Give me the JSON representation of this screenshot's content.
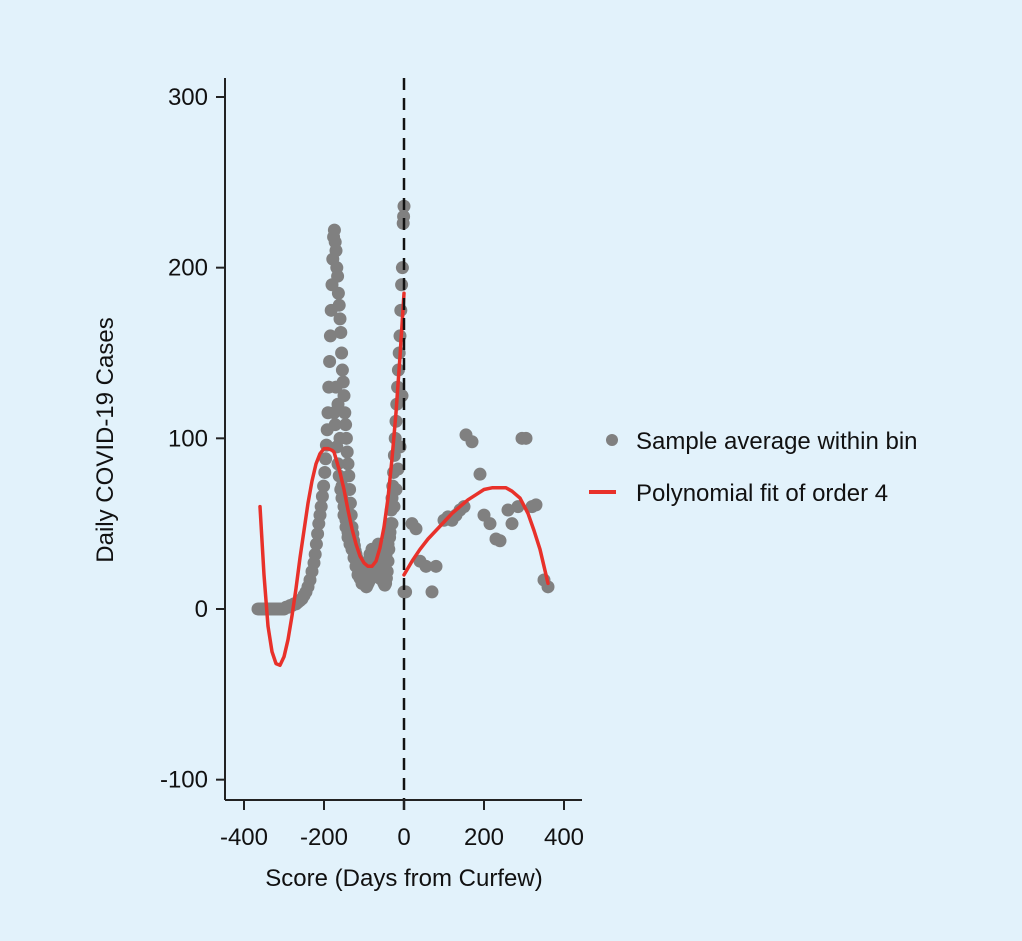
{
  "chart_data": {
    "type": "scatter",
    "title": "",
    "xlabel": "Score (Days from Curfew)",
    "ylabel": "Daily COVID-19 Cases",
    "xlim": [
      -450,
      450
    ],
    "ylim": [
      -110,
      310
    ],
    "xticks": [
      -400,
      -200,
      0,
      200,
      400
    ],
    "yticks": [
      -100,
      0,
      100,
      200,
      300
    ],
    "xtick_labels": [
      "-400",
      "-200",
      "0",
      "200",
      "400"
    ],
    "ytick_labels": [
      "-100",
      "0",
      "100",
      "200",
      "300"
    ],
    "cutoff": 0,
    "grid": false,
    "legend_position": "right",
    "colors": {
      "background": "#e2f2fb",
      "points": "#808080",
      "fit": "#e8312a",
      "axis": "#111111"
    },
    "series": [
      {
        "name": "Sample average within bin",
        "kind": "scatter",
        "points": [
          [
            -365,
            0
          ],
          [
            -360,
            0
          ],
          [
            -355,
            0
          ],
          [
            -350,
            0
          ],
          [
            -345,
            0
          ],
          [
            -340,
            0
          ],
          [
            -335,
            0
          ],
          [
            -330,
            0
          ],
          [
            -325,
            0
          ],
          [
            -320,
            0
          ],
          [
            -315,
            0
          ],
          [
            -310,
            0
          ],
          [
            -305,
            0
          ],
          [
            -300,
            0
          ],
          [
            -295,
            1
          ],
          [
            -290,
            1
          ],
          [
            -285,
            2
          ],
          [
            -280,
            2
          ],
          [
            -275,
            3
          ],
          [
            -270,
            3
          ],
          [
            -265,
            4
          ],
          [
            -260,
            5
          ],
          [
            -255,
            6
          ],
          [
            -250,
            8
          ],
          [
            -245,
            10
          ],
          [
            -240,
            13
          ],
          [
            -235,
            17
          ],
          [
            -230,
            22
          ],
          [
            -225,
            27
          ],
          [
            -222,
            32
          ],
          [
            -219,
            38
          ],
          [
            -216,
            44
          ],
          [
            -213,
            50
          ],
          [
            -210,
            55
          ],
          [
            -207,
            60
          ],
          [
            -204,
            66
          ],
          [
            -201,
            72
          ],
          [
            -198,
            80
          ],
          [
            -196,
            88
          ],
          [
            -194,
            96
          ],
          [
            -192,
            105
          ],
          [
            -190,
            115
          ],
          [
            -188,
            130
          ],
          [
            -186,
            145
          ],
          [
            -184,
            160
          ],
          [
            -182,
            175
          ],
          [
            -180,
            190
          ],
          [
            -178,
            205
          ],
          [
            -176,
            218
          ],
          [
            -174,
            222
          ],
          [
            -172,
            215
          ],
          [
            -170,
            210
          ],
          [
            -168,
            200
          ],
          [
            -166,
            195
          ],
          [
            -164,
            185
          ],
          [
            -162,
            178
          ],
          [
            -160,
            170
          ],
          [
            -158,
            162
          ],
          [
            -156,
            150
          ],
          [
            -154,
            140
          ],
          [
            -152,
            133
          ],
          [
            -150,
            125
          ],
          [
            -148,
            115
          ],
          [
            -146,
            108
          ],
          [
            -144,
            100
          ],
          [
            -142,
            92
          ],
          [
            -140,
            85
          ],
          [
            -138,
            78
          ],
          [
            -136,
            70
          ],
          [
            -134,
            62
          ],
          [
            -132,
            55
          ],
          [
            -130,
            48
          ],
          [
            -128,
            44
          ],
          [
            -126,
            40
          ],
          [
            -124,
            37
          ],
          [
            -122,
            34
          ],
          [
            -120,
            32
          ],
          [
            -118,
            30
          ],
          [
            -116,
            28
          ],
          [
            -114,
            26
          ],
          [
            -112,
            24
          ],
          [
            -110,
            22
          ],
          [
            -108,
            20
          ],
          [
            -106,
            19
          ],
          [
            -104,
            18
          ],
          [
            -102,
            17
          ],
          [
            -100,
            16
          ],
          [
            -98,
            15
          ],
          [
            -96,
            14
          ],
          [
            -94,
            13
          ],
          [
            -92,
            14
          ],
          [
            -90,
            15
          ],
          [
            -88,
            16
          ],
          [
            -86,
            17
          ],
          [
            -84,
            18
          ],
          [
            -82,
            20
          ],
          [
            -80,
            22
          ],
          [
            -78,
            24
          ],
          [
            -76,
            26
          ],
          [
            -74,
            28
          ],
          [
            -72,
            30
          ],
          [
            -70,
            32
          ],
          [
            -68,
            34
          ],
          [
            -66,
            36
          ],
          [
            -64,
            38
          ],
          [
            -62,
            35
          ],
          [
            -60,
            30
          ],
          [
            -58,
            25
          ],
          [
            -56,
            20
          ],
          [
            -54,
            18
          ],
          [
            -52,
            16
          ],
          [
            -50,
            15
          ],
          [
            -48,
            14
          ],
          [
            -46,
            15
          ],
          [
            -44,
            18
          ],
          [
            -42,
            22
          ],
          [
            -40,
            28
          ],
          [
            -38,
            35
          ],
          [
            -36,
            42
          ],
          [
            -34,
            50
          ],
          [
            -32,
            58
          ],
          [
            -30,
            65
          ],
          [
            -28,
            72
          ],
          [
            -26,
            80
          ],
          [
            -24,
            90
          ],
          [
            -22,
            100
          ],
          [
            -20,
            110
          ],
          [
            -18,
            120
          ],
          [
            -16,
            130
          ],
          [
            -14,
            140
          ],
          [
            -12,
            150
          ],
          [
            -10,
            160
          ],
          [
            -8,
            175
          ],
          [
            -6,
            190
          ],
          [
            -4,
            200
          ],
          [
            -2,
            226
          ],
          [
            -1,
            230
          ],
          [
            0,
            236
          ],
          [
            0,
            10
          ],
          [
            4,
            10
          ],
          [
            -170,
            130
          ],
          [
            -165,
            120
          ],
          [
            -160,
            100
          ],
          [
            -155,
            72
          ],
          [
            -150,
            60
          ],
          [
            -145,
            48
          ],
          [
            -140,
            42
          ],
          [
            -135,
            38
          ],
          [
            -130,
            35
          ],
          [
            -125,
            30
          ],
          [
            -120,
            25
          ],
          [
            -115,
            20
          ],
          [
            -110,
            18
          ],
          [
            -105,
            15
          ],
          [
            -100,
            22
          ],
          [
            -95,
            25
          ],
          [
            -90,
            28
          ],
          [
            -85,
            32
          ],
          [
            -80,
            35
          ],
          [
            -75,
            30
          ],
          [
            -70,
            25
          ],
          [
            -65,
            20
          ],
          [
            -60,
            18
          ],
          [
            -55,
            22
          ],
          [
            -50,
            28
          ],
          [
            -45,
            32
          ],
          [
            -40,
            38
          ],
          [
            -35,
            45
          ],
          [
            -30,
            50
          ],
          [
            -25,
            60
          ],
          [
            -20,
            70
          ],
          [
            -15,
            82
          ],
          [
            -10,
            95
          ],
          [
            -5,
            125
          ],
          [
            -175,
            115
          ],
          [
            -172,
            108
          ],
          [
            -168,
            95
          ],
          [
            -165,
            85
          ],
          [
            -162,
            78
          ],
          [
            -158,
            70
          ],
          [
            -155,
            65
          ],
          [
            -150,
            55
          ],
          [
            -145,
            52
          ],
          [
            -140,
            45
          ],
          [
            20,
            50
          ],
          [
            30,
            47
          ],
          [
            40,
            28
          ],
          [
            55,
            25
          ],
          [
            70,
            10
          ],
          [
            80,
            25
          ],
          [
            100,
            52
          ],
          [
            110,
            54
          ],
          [
            120,
            52
          ],
          [
            130,
            55
          ],
          [
            140,
            58
          ],
          [
            150,
            60
          ],
          [
            155,
            102
          ],
          [
            170,
            98
          ],
          [
            190,
            79
          ],
          [
            200,
            55
          ],
          [
            215,
            50
          ],
          [
            230,
            41
          ],
          [
            240,
            40
          ],
          [
            260,
            58
          ],
          [
            270,
            50
          ],
          [
            285,
            60
          ],
          [
            295,
            100
          ],
          [
            305,
            100
          ],
          [
            320,
            60
          ],
          [
            330,
            61
          ],
          [
            350,
            17
          ],
          [
            360,
            13
          ]
        ]
      },
      {
        "name": "Polynomial fit of order 4",
        "kind": "line",
        "segments": [
          {
            "x_range": [
              -360,
              0
            ],
            "points": [
              [
                -360,
                60
              ],
              [
                -350,
                20
              ],
              [
                -340,
                -10
              ],
              [
                -330,
                -25
              ],
              [
                -320,
                -32
              ],
              [
                -310,
                -33
              ],
              [
                -300,
                -28
              ],
              [
                -290,
                -18
              ],
              [
                -280,
                -4
              ],
              [
                -270,
                12
              ],
              [
                -260,
                30
              ],
              [
                -250,
                46
              ],
              [
                -240,
                62
              ],
              [
                -230,
                75
              ],
              [
                -220,
                85
              ],
              [
                -210,
                91
              ],
              [
                -200,
                94
              ],
              [
                -190,
                94
              ],
              [
                -180,
                93
              ],
              [
                -175,
                92
              ],
              [
                -170,
                88
              ],
              [
                -160,
                80
              ],
              [
                -150,
                70
              ],
              [
                -140,
                58
              ],
              [
                -130,
                47
              ],
              [
                -120,
                38
              ],
              [
                -110,
                31
              ],
              [
                -100,
                27
              ],
              [
                -90,
                25
              ],
              [
                -80,
                25
              ],
              [
                -70,
                28
              ],
              [
                -60,
                36
              ],
              [
                -50,
                48
              ],
              [
                -40,
                65
              ],
              [
                -30,
                88
              ],
              [
                -20,
                115
              ],
              [
                -10,
                148
              ],
              [
                0,
                185
              ]
            ]
          },
          {
            "x_range": [
              0,
              360
            ],
            "points": [
              [
                0,
                20
              ],
              [
                20,
                28
              ],
              [
                40,
                35
              ],
              [
                60,
                41
              ],
              [
                80,
                46
              ],
              [
                100,
                51
              ],
              [
                120,
                56
              ],
              [
                140,
                60
              ],
              [
                160,
                64
              ],
              [
                180,
                67
              ],
              [
                200,
                70
              ],
              [
                220,
                71
              ],
              [
                240,
                71
              ],
              [
                255,
                71
              ],
              [
                270,
                69
              ],
              [
                290,
                65
              ],
              [
                310,
                56
              ],
              [
                325,
                46
              ],
              [
                340,
                35
              ],
              [
                350,
                25
              ],
              [
                360,
                15
              ]
            ]
          }
        ]
      }
    ],
    "legend": [
      {
        "label": "Sample average within bin",
        "marker": "dot"
      },
      {
        "label": "Polynomial fit of order 4",
        "marker": "line"
      }
    ]
  }
}
